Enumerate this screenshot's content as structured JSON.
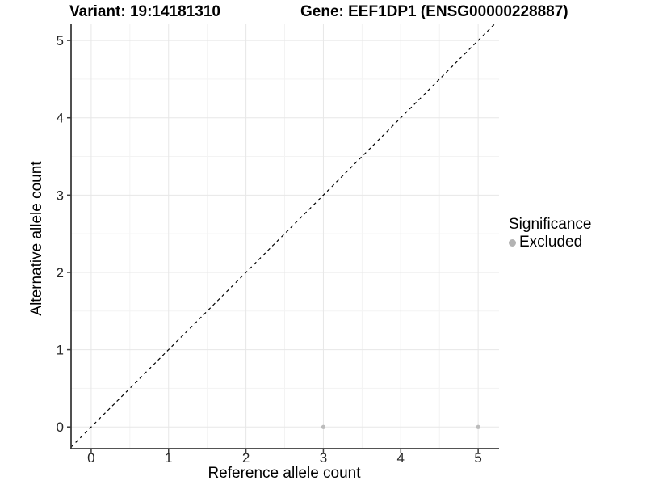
{
  "chart_data": {
    "type": "scatter",
    "title_left": "Variant: 19:14181310",
    "title_right": "Gene: EEF1DP1 (ENSG00000228887)",
    "xlabel": "Reference allele count",
    "ylabel": "Alternative allele count",
    "x_ticks": [
      0,
      1,
      2,
      3,
      4,
      5
    ],
    "y_ticks": [
      0,
      1,
      2,
      3,
      4,
      5
    ],
    "xlim": [
      -0.26,
      5.27
    ],
    "ylim": [
      -0.28,
      5.21
    ],
    "grid": {
      "major": true,
      "minor": true,
      "major_color": "#e7e7e7",
      "minor_color": "#f3f3f3"
    },
    "reference_line": {
      "equation": "y = x",
      "style": "dashed",
      "color": "#000000"
    },
    "series": [
      {
        "name": "Excluded",
        "color": "#bcbcbc",
        "points": [
          {
            "x": 3,
            "y": 0
          },
          {
            "x": 5,
            "y": 0
          }
        ]
      }
    ],
    "legend": {
      "title": "Significance",
      "position": "right",
      "items": [
        {
          "label": "Excluded",
          "color": "#b3b3b3"
        }
      ]
    },
    "axis_color": "#3c3c3c",
    "tick_label_color": "#262626",
    "background": "#ffffff"
  }
}
